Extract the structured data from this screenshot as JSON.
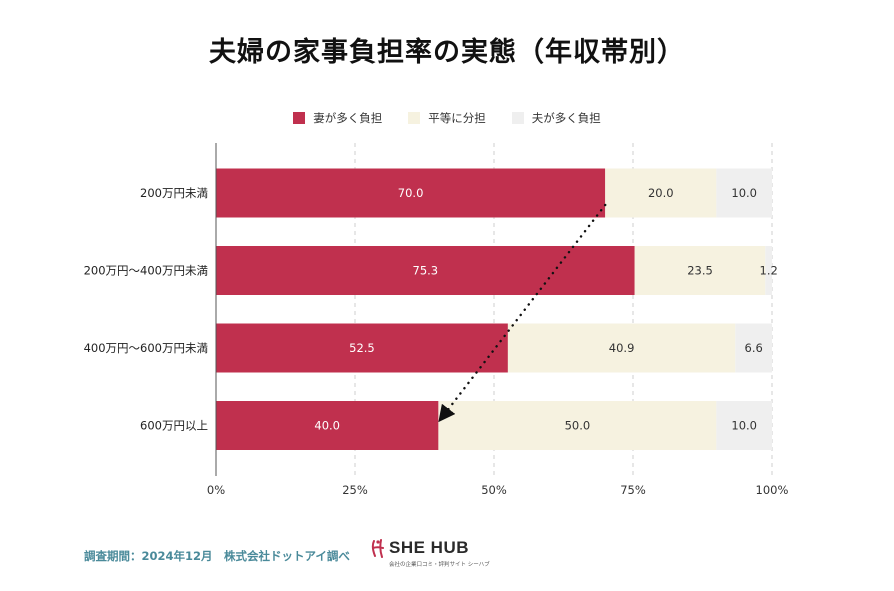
{
  "chart_data": {
    "type": "bar",
    "orientation": "horizontal",
    "stacked": true,
    "title": "夫婦の家事負担率の実態（年収帯別）",
    "categories": [
      "200万円未満",
      "200万円〜400万円未満",
      "400万円〜600万円未満",
      "600万円以上"
    ],
    "series": [
      {
        "name": "妻が多く負担",
        "values": [
          70.0,
          75.3,
          52.5,
          40.0
        ],
        "color": "#c0304e",
        "label_color": "#ffffff"
      },
      {
        "name": "平等に分担",
        "values": [
          20.0,
          23.5,
          40.9,
          50.0
        ],
        "color": "#f6f2e0",
        "label_color": "#333333"
      },
      {
        "name": "夫が多く負担",
        "values": [
          10.0,
          1.2,
          6.6,
          10.0
        ],
        "color": "#efefef",
        "label_color": "#333333"
      }
    ],
    "value_labels": [
      [
        "70.0",
        "20.0",
        "10.0"
      ],
      [
        "75.3",
        "23.5",
        "1.2"
      ],
      [
        "52.5",
        "40.9",
        "6.6"
      ],
      [
        "40.0",
        "50.0",
        "10.0"
      ]
    ],
    "xlim": [
      0,
      100
    ],
    "xticks": [
      0,
      25,
      50,
      75,
      100
    ],
    "xtick_labels": [
      "0%",
      "25%",
      "50%",
      "75%",
      "100%"
    ],
    "grid": true,
    "legend": "top-center",
    "annotation": {
      "type": "dotted-arrow",
      "from": {
        "category": "200万円未満",
        "value": 70.0
      },
      "to": {
        "category": "600万円以上",
        "value": 40.0
      }
    }
  },
  "footer": {
    "source_note": "調査期間：2024年12月　株式会社ドットアイ調べ",
    "brand_name": "SHE HUB",
    "brand_tagline": "会社の企業口コミ・評判サイト シーハブ"
  },
  "colors": {
    "primary": "#c0304e",
    "equal": "#f6f2e0",
    "husband": "#efefef",
    "note": "#4a8a9a"
  }
}
